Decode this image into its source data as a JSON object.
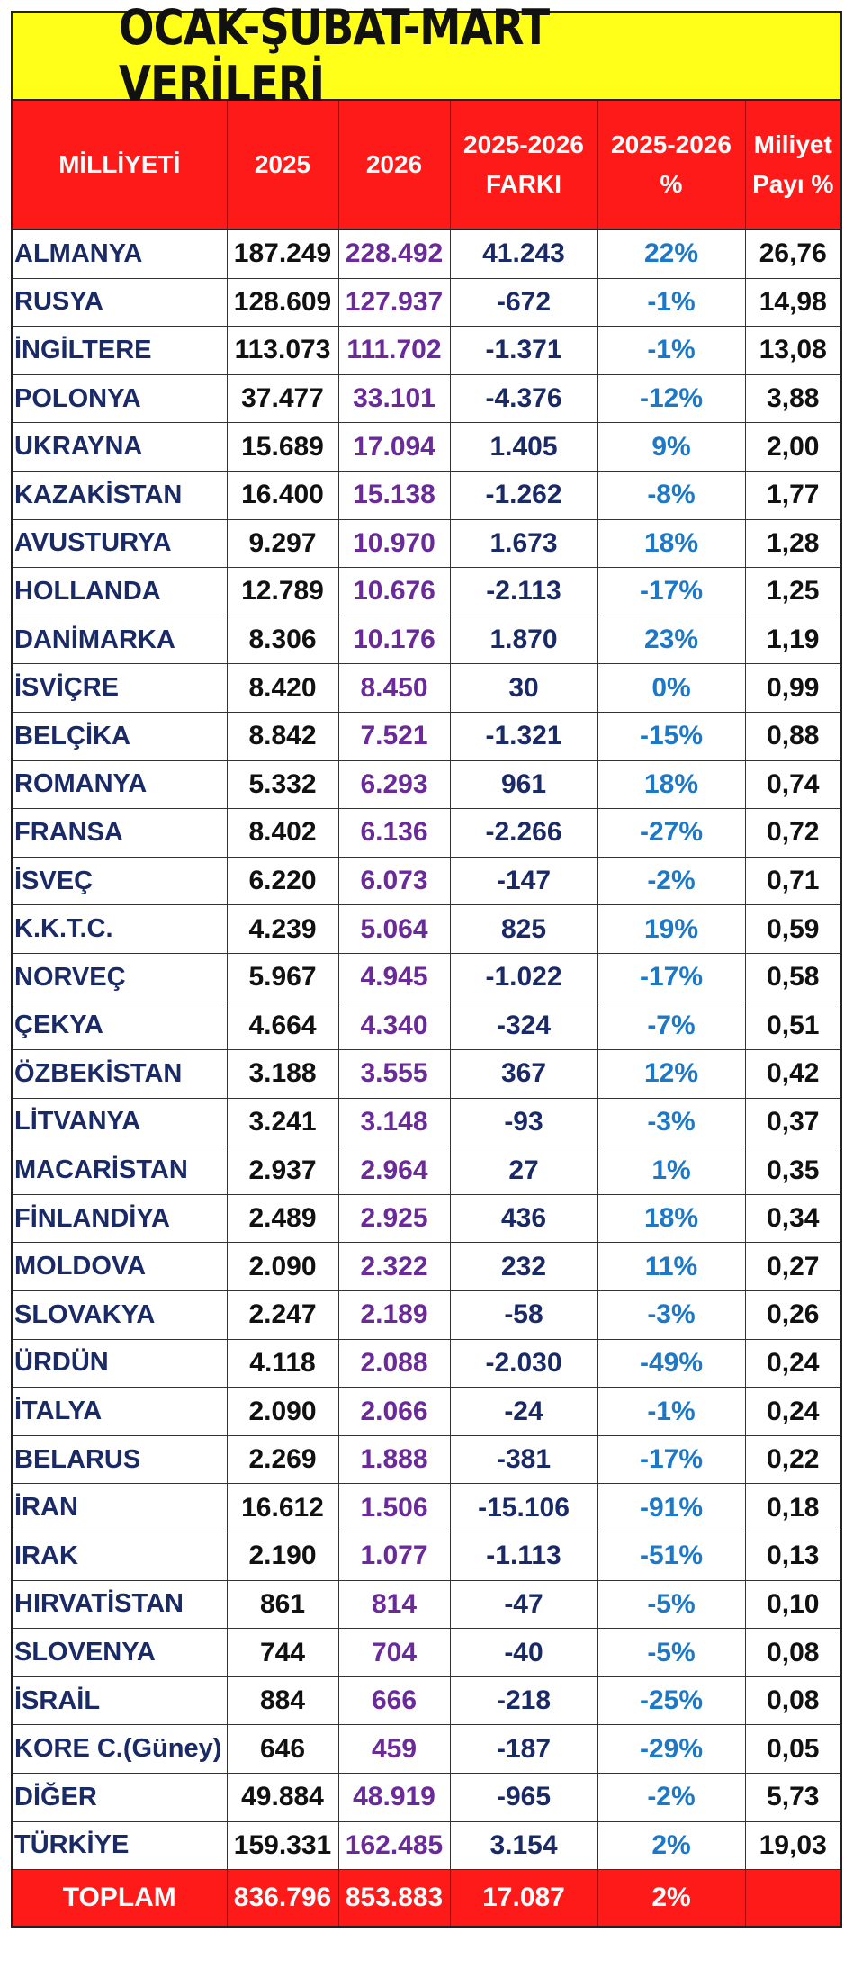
{
  "title": "OCAK-ŞUBAT-MART VERİLERİ",
  "headers": {
    "nationality": "MİLLİYETİ",
    "y2025": "2025",
    "y2026": "2026",
    "diff_line1": "2025-2026",
    "diff_line2": "FARKI",
    "pct_line1": "2025-2026",
    "pct_line2": "%",
    "share_line1": "Miliyet",
    "share_line2": "Payı %"
  },
  "rows": [
    {
      "name": "ALMANYA",
      "v2025": "187.249",
      "v2026": "228.492",
      "diff": "41.243",
      "pct": "22%",
      "share": "26,76"
    },
    {
      "name": "RUSYA",
      "v2025": "128.609",
      "v2026": "127.937",
      "diff": "-672",
      "pct": "-1%",
      "share": "14,98"
    },
    {
      "name": "İNGİLTERE",
      "v2025": "113.073",
      "v2026": "111.702",
      "diff": "-1.371",
      "pct": "-1%",
      "share": "13,08"
    },
    {
      "name": "POLONYA",
      "v2025": "37.477",
      "v2026": "33.101",
      "diff": "-4.376",
      "pct": "-12%",
      "share": "3,88"
    },
    {
      "name": "UKRAYNA",
      "v2025": "15.689",
      "v2026": "17.094",
      "diff": "1.405",
      "pct": "9%",
      "share": "2,00"
    },
    {
      "name": "KAZAKİSTAN",
      "v2025": "16.400",
      "v2026": "15.138",
      "diff": "-1.262",
      "pct": "-8%",
      "share": "1,77"
    },
    {
      "name": "AVUSTURYA",
      "v2025": "9.297",
      "v2026": "10.970",
      "diff": "1.673",
      "pct": "18%",
      "share": "1,28"
    },
    {
      "name": "HOLLANDA",
      "v2025": "12.789",
      "v2026": "10.676",
      "diff": "-2.113",
      "pct": "-17%",
      "share": "1,25"
    },
    {
      "name": "DANİMARKA",
      "v2025": "8.306",
      "v2026": "10.176",
      "diff": "1.870",
      "pct": "23%",
      "share": "1,19"
    },
    {
      "name": "İSVİÇRE",
      "v2025": "8.420",
      "v2026": "8.450",
      "diff": "30",
      "pct": "0%",
      "share": "0,99"
    },
    {
      "name": "BELÇİKA",
      "v2025": "8.842",
      "v2026": "7.521",
      "diff": "-1.321",
      "pct": "-15%",
      "share": "0,88"
    },
    {
      "name": "ROMANYA",
      "v2025": "5.332",
      "v2026": "6.293",
      "diff": "961",
      "pct": "18%",
      "share": "0,74"
    },
    {
      "name": "FRANSA",
      "v2025": "8.402",
      "v2026": "6.136",
      "diff": "-2.266",
      "pct": "-27%",
      "share": "0,72"
    },
    {
      "name": "İSVEÇ",
      "v2025": "6.220",
      "v2026": "6.073",
      "diff": "-147",
      "pct": "-2%",
      "share": "0,71"
    },
    {
      "name": "K.K.T.C.",
      "v2025": "4.239",
      "v2026": "5.064",
      "diff": "825",
      "pct": "19%",
      "share": "0,59"
    },
    {
      "name": "NORVEÇ",
      "v2025": "5.967",
      "v2026": "4.945",
      "diff": "-1.022",
      "pct": "-17%",
      "share": "0,58"
    },
    {
      "name": "ÇEKYA",
      "v2025": "4.664",
      "v2026": "4.340",
      "diff": "-324",
      "pct": "-7%",
      "share": "0,51"
    },
    {
      "name": "ÖZBEKİSTAN",
      "v2025": "3.188",
      "v2026": "3.555",
      "diff": "367",
      "pct": "12%",
      "share": "0,42"
    },
    {
      "name": "LİTVANYA",
      "v2025": "3.241",
      "v2026": "3.148",
      "diff": "-93",
      "pct": "-3%",
      "share": "0,37"
    },
    {
      "name": "MACARİSTAN",
      "v2025": "2.937",
      "v2026": "2.964",
      "diff": "27",
      "pct": "1%",
      "share": "0,35"
    },
    {
      "name": "FİNLANDİYA",
      "v2025": "2.489",
      "v2026": "2.925",
      "diff": "436",
      "pct": "18%",
      "share": "0,34"
    },
    {
      "name": "MOLDOVA",
      "v2025": "2.090",
      "v2026": "2.322",
      "diff": "232",
      "pct": "11%",
      "share": "0,27"
    },
    {
      "name": "SLOVAKYA",
      "v2025": "2.247",
      "v2026": "2.189",
      "diff": "-58",
      "pct": "-3%",
      "share": "0,26"
    },
    {
      "name": "ÜRDÜN",
      "v2025": "4.118",
      "v2026": "2.088",
      "diff": "-2.030",
      "pct": "-49%",
      "share": "0,24"
    },
    {
      "name": "İTALYA",
      "v2025": "2.090",
      "v2026": "2.066",
      "diff": "-24",
      "pct": "-1%",
      "share": "0,24"
    },
    {
      "name": "BELARUS",
      "v2025": "2.269",
      "v2026": "1.888",
      "diff": "-381",
      "pct": "-17%",
      "share": "0,22"
    },
    {
      "name": "İRAN",
      "v2025": "16.612",
      "v2026": "1.506",
      "diff": "-15.106",
      "pct": "-91%",
      "share": "0,18"
    },
    {
      "name": "IRAK",
      "v2025": "2.190",
      "v2026": "1.077",
      "diff": "-1.113",
      "pct": "-51%",
      "share": "0,13"
    },
    {
      "name": "HIRVATİSTAN",
      "v2025": "861",
      "v2026": "814",
      "diff": "-47",
      "pct": "-5%",
      "share": "0,10"
    },
    {
      "name": "SLOVENYA",
      "v2025": "744",
      "v2026": "704",
      "diff": "-40",
      "pct": "-5%",
      "share": "0,08"
    },
    {
      "name": "İSRAİL",
      "v2025": "884",
      "v2026": "666",
      "diff": "-218",
      "pct": "-25%",
      "share": "0,08"
    },
    {
      "name": "KORE C.(Güney)",
      "v2025": "646",
      "v2026": "459",
      "diff": "-187",
      "pct": "-29%",
      "share": "0,05"
    },
    {
      "name": "DİĞER",
      "v2025": "49.884",
      "v2026": "48.919",
      "diff": "-965",
      "pct": "-2%",
      "share": "5,73"
    },
    {
      "name": "TÜRKİYE",
      "v2025": "159.331",
      "v2026": "162.485",
      "diff": "3.154",
      "pct": "2%",
      "share": "19,03"
    }
  ],
  "total": {
    "name": "TOPLAM",
    "v2025": "836.796",
    "v2026": "853.883",
    "diff": "17.087",
    "pct": "2%",
    "share": ""
  }
}
